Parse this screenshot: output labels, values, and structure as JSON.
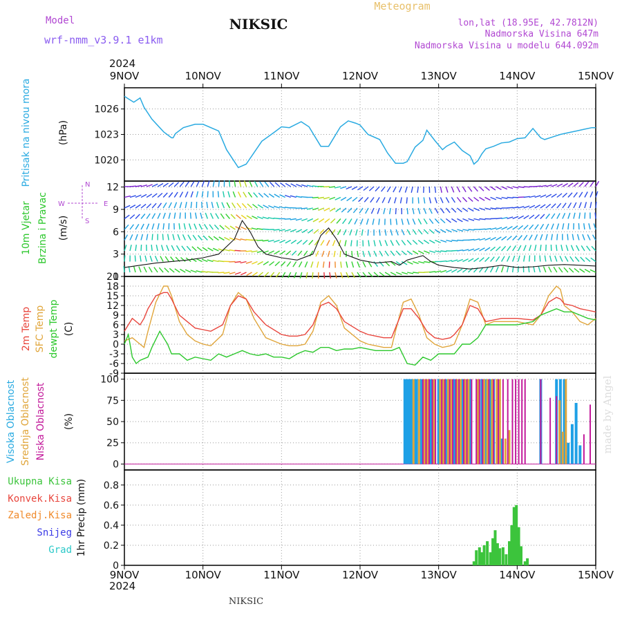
{
  "header": {
    "model_label": "Model",
    "model_name": "wrf-nmm_v3.9.1  e1km",
    "station": "NIKSIC",
    "product": "Meteogram",
    "coords": "lon,lat (18.95E, 42.7812N)",
    "elevation": "Nadmorska Visina 647m",
    "model_elevation": "Nadmorska Visina u modelu 644.092m",
    "footer_station": "NIKSIC",
    "credit": "made by Angel"
  },
  "x_axis": {
    "year_top": "2024",
    "year_bottom": "2024",
    "ticks": [
      "9NOV",
      "10NOV",
      "11NOV",
      "12NOV",
      "13NOV",
      "14NOV",
      "15NOV"
    ]
  },
  "colors": {
    "pressure": "#29aae1",
    "temp2m": "#e8453c",
    "sfc": "#e0a53a",
    "dewpt": "#2bc72b",
    "high_cloud": "#1ea0e6",
    "mid_cloud": "#e0a53a",
    "low_cloud": "#c2189a",
    "total_precip": "#3cc43c",
    "conv_precip": "#e8453c",
    "frozen_precip": "#f08a2a",
    "snow": "#3a3ae6",
    "hail": "#2ac8c8",
    "purple_text": "#b148d2",
    "model_text": "#8a5cf0"
  },
  "chart_data": [
    {
      "type": "line",
      "panel": "pressure",
      "ylabel_main": "Pritisak na nivou mora",
      "ylabel_unit": "(hPa)",
      "ylim": [
        1017.5,
        1028.5
      ],
      "yticks": [
        1020,
        1023,
        1026
      ],
      "series": [
        {
          "x": [
            0,
            0.05,
            0.12,
            0.2,
            0.25,
            0.35,
            0.5,
            0.6,
            0.62,
            0.65,
            0.75,
            0.9,
            1.0,
            1.2,
            1.3,
            1.45,
            1.55,
            1.75,
            1.9,
            2.0,
            2.1,
            2.25,
            2.35,
            2.5,
            2.6,
            2.75,
            2.85,
            2.95,
            3.0,
            3.1,
            3.25,
            3.35,
            3.45,
            3.55,
            3.6,
            3.7,
            3.8,
            3.85,
            3.95,
            4.05,
            4.1,
            4.2,
            4.3,
            4.4,
            4.45,
            4.5,
            4.55,
            4.6,
            4.7,
            4.8,
            4.9,
            5.0,
            5.1,
            5.2,
            5.3,
            5.35,
            5.45,
            5.55,
            5.65,
            5.75,
            5.85,
            5.95,
            6.0
          ],
          "y": [
            1027.5,
            1027.2,
            1026.8,
            1027.3,
            1026.2,
            1024.8,
            1023.3,
            1022.6,
            1022.6,
            1023.1,
            1023.8,
            1024.2,
            1024.2,
            1023.4,
            1021.2,
            1019.1,
            1019.5,
            1022.2,
            1023.2,
            1023.9,
            1023.8,
            1024.5,
            1023.9,
            1021.6,
            1021.6,
            1023.9,
            1024.6,
            1024.3,
            1024.1,
            1023.0,
            1022.4,
            1020.8,
            1019.6,
            1019.6,
            1019.8,
            1021.5,
            1022.3,
            1023.5,
            1022.3,
            1021.2,
            1021.6,
            1022.1,
            1021.1,
            1020.5,
            1019.5,
            1019.9,
            1020.7,
            1021.3,
            1021.6,
            1022.0,
            1022.1,
            1022.5,
            1022.6,
            1023.7,
            1022.6,
            1022.4,
            1022.7,
            1023.0,
            1023.2,
            1023.4,
            1023.6,
            1023.8,
            1023.8
          ]
        }
      ]
    },
    {
      "type": "line",
      "panel": "wind",
      "ylabel_main": "10m Vjetar",
      "ylabel_sub": "Brzina i Pravac",
      "ylabel_unit": "(m/s)",
      "legend_n": "N",
      "legend_s": "S",
      "legend_w": "W",
      "legend_e": "E",
      "ylim": [
        0,
        12.8
      ],
      "yticks": [
        0,
        3,
        6,
        9,
        12
      ],
      "series": [
        {
          "name": "speed",
          "x": [
            0,
            0.2,
            0.4,
            0.6,
            0.8,
            1.0,
            1.2,
            1.4,
            1.5,
            1.6,
            1.7,
            1.8,
            2.0,
            2.2,
            2.4,
            2.5,
            2.6,
            2.7,
            2.8,
            3.0,
            3.2,
            3.4,
            3.5,
            3.6,
            3.7,
            3.8,
            3.9,
            4.0,
            4.2,
            4.4,
            4.6,
            4.8,
            5.0,
            5.2,
            5.4,
            5.6,
            5.8,
            6.0
          ],
          "y": [
            1.2,
            1.5,
            1.8,
            2.0,
            2.2,
            2.5,
            3.0,
            5.0,
            7.5,
            6.0,
            4.0,
            3.0,
            2.5,
            2.2,
            3.0,
            5.5,
            6.5,
            5.0,
            3.0,
            2.2,
            1.8,
            2.0,
            1.5,
            2.2,
            2.5,
            2.8,
            2.0,
            1.5,
            1.2,
            1.0,
            1.2,
            1.5,
            1.2,
            1.3,
            1.5,
            1.6,
            1.5,
            1.4
          ]
        }
      ]
    },
    {
      "type": "line",
      "panel": "temperature",
      "ylabel_main": "2m Temp",
      "ylabel_sub": "SFC Temp",
      "ylabel_sub2": "dewpt Temp",
      "ylabel_unit": "(C)",
      "ylim": [
        -9,
        21
      ],
      "yticks": [
        -9,
        -6,
        -3,
        0,
        3,
        6,
        9,
        12,
        15,
        18,
        21
      ],
      "series": [
        {
          "name": "2m Temp",
          "x": [
            0,
            0.1,
            0.2,
            0.25,
            0.3,
            0.4,
            0.5,
            0.55,
            0.6,
            0.7,
            0.8,
            0.9,
            1.0,
            1.1,
            1.25,
            1.35,
            1.45,
            1.55,
            1.65,
            1.8,
            2.0,
            2.1,
            2.2,
            2.3,
            2.4,
            2.5,
            2.6,
            2.7,
            2.8,
            3.0,
            3.1,
            3.2,
            3.3,
            3.4,
            3.45,
            3.55,
            3.65,
            3.75,
            3.85,
            3.95,
            4.05,
            4.15,
            4.2,
            4.3,
            4.4,
            4.5,
            4.6,
            4.7,
            4.8,
            5.0,
            5.2,
            5.3,
            5.4,
            5.5,
            5.55,
            5.6,
            5.7,
            5.8,
            5.9,
            6.0
          ],
          "y": [
            4,
            8,
            6,
            8,
            11,
            15,
            16,
            16,
            14,
            9,
            7,
            5,
            4.5,
            4,
            6,
            12,
            15,
            14,
            10,
            6,
            3,
            2.5,
            2.5,
            3,
            6,
            12,
            13,
            11,
            7,
            4,
            3,
            2.5,
            2,
            2,
            5,
            11,
            11,
            8,
            4,
            2,
            1.5,
            2,
            3,
            6,
            12,
            11,
            7,
            7.5,
            8,
            8,
            7.5,
            9,
            13,
            14.5,
            14,
            12.5,
            12,
            11,
            10.5,
            10
          ]
        },
        {
          "name": "SFC Temp",
          "x": [
            0,
            0.1,
            0.2,
            0.25,
            0.3,
            0.4,
            0.5,
            0.55,
            0.6,
            0.7,
            0.8,
            0.9,
            1.0,
            1.1,
            1.25,
            1.35,
            1.45,
            1.55,
            1.65,
            1.8,
            2.0,
            2.1,
            2.2,
            2.3,
            2.4,
            2.5,
            2.6,
            2.7,
            2.8,
            3.0,
            3.1,
            3.2,
            3.3,
            3.4,
            3.45,
            3.55,
            3.65,
            3.75,
            3.85,
            3.95,
            4.05,
            4.15,
            4.2,
            4.3,
            4.4,
            4.5,
            4.6,
            4.7,
            4.8,
            5.0,
            5.2,
            5.3,
            5.4,
            5.5,
            5.55,
            5.6,
            5.7,
            5.8,
            5.9,
            6.0
          ],
          "y": [
            1,
            2,
            0,
            -1,
            4,
            13,
            18,
            18,
            15,
            7,
            3,
            1,
            0,
            -0.5,
            3,
            12,
            16,
            14,
            8,
            2,
            0,
            -0.5,
            -0.5,
            0,
            4,
            13,
            15,
            12,
            5,
            1,
            0,
            -0.5,
            -1,
            -1,
            4,
            13,
            14,
            9,
            2,
            0,
            -1,
            -0.5,
            0,
            6,
            14,
            13,
            6,
            7,
            7,
            7,
            6,
            9,
            15,
            18,
            17,
            12,
            10,
            7,
            6,
            8
          ]
        },
        {
          "name": "dewpt Temp",
          "x": [
            0,
            0.05,
            0.1,
            0.15,
            0.2,
            0.3,
            0.35,
            0.45,
            0.5,
            0.55,
            0.6,
            0.7,
            0.8,
            0.9,
            1.0,
            1.1,
            1.2,
            1.3,
            1.4,
            1.5,
            1.6,
            1.7,
            1.8,
            1.9,
            2.0,
            2.1,
            2.2,
            2.3,
            2.4,
            2.5,
            2.6,
            2.7,
            2.8,
            2.9,
            3.0,
            3.2,
            3.4,
            3.5,
            3.6,
            3.7,
            3.8,
            3.9,
            4.0,
            4.1,
            4.2,
            4.3,
            4.4,
            4.5,
            4.6,
            4.8,
            5.0,
            5.2,
            5.3,
            5.4,
            5.5,
            5.6,
            5.7,
            5.8,
            5.9,
            6.0
          ],
          "y": [
            0,
            3,
            -4,
            -6,
            -5,
            -4,
            -1,
            4,
            2,
            0,
            -3,
            -3,
            -5,
            -4,
            -4.5,
            -5,
            -3,
            -4,
            -3,
            -2,
            -3,
            -3.5,
            -3,
            -4,
            -4,
            -4.5,
            -3,
            -2,
            -2.5,
            -1,
            -1,
            -2,
            -1.5,
            -1.5,
            -1,
            -2,
            -2,
            -1,
            -6,
            -6.5,
            -4,
            -5,
            -3,
            -3,
            -3,
            0,
            0,
            2,
            6,
            6,
            6,
            7,
            9,
            10,
            11,
            10,
            10,
            9,
            8,
            7.5
          ]
        }
      ]
    },
    {
      "type": "bar",
      "panel": "clouds",
      "ylabel_main": "Visoka Oblacnost",
      "ylabel_sub": "Srednja Oblacnost",
      "ylabel_sub2": "Niska Oblacnost",
      "ylabel_unit": "(%)",
      "ylim": [
        -7,
        107
      ],
      "yticks": [
        0,
        25,
        50,
        75,
        100
      ],
      "series": [
        {
          "name": "Visoka Oblacnost",
          "x": [
            3.57,
            3.6,
            3.62,
            3.64,
            3.66,
            3.7,
            3.72,
            3.78,
            3.9,
            4.0,
            4.1,
            4.2,
            4.3,
            4.4,
            4.55,
            4.6,
            4.65,
            4.7,
            4.75,
            4.8,
            5.3,
            5.5,
            5.55,
            5.6,
            5.62,
            5.65,
            5.7,
            5.75,
            5.8
          ],
          "y": [
            100,
            100,
            100,
            100,
            100,
            100,
            100,
            100,
            100,
            100,
            100,
            100,
            100,
            100,
            100,
            100,
            100,
            100,
            100,
            30,
            100,
            100,
            100,
            100,
            10,
            25,
            47,
            72,
            22
          ]
        },
        {
          "name": "Srednja Oblacnost",
          "x": [
            3.68,
            3.75,
            3.82,
            3.86,
            3.94,
            4.02,
            4.06,
            4.12,
            4.16,
            4.24,
            4.28,
            4.34,
            4.38,
            4.5,
            4.58,
            4.62,
            4.68,
            4.74,
            4.78,
            4.85,
            4.9,
            5.54,
            5.58,
            5.62
          ],
          "y": [
            100,
            100,
            100,
            100,
            100,
            100,
            100,
            100,
            100,
            100,
            100,
            100,
            100,
            100,
            100,
            100,
            100,
            100,
            100,
            30,
            40,
            75,
            38,
            100
          ]
        },
        {
          "name": "Niska Oblacnost",
          "x": [
            3.8,
            3.84,
            3.88,
            3.92,
            3.96,
            4.04,
            4.08,
            4.14,
            4.18,
            4.22,
            4.26,
            4.32,
            4.36,
            4.42,
            4.48,
            4.52,
            4.56,
            4.64,
            4.7,
            4.76,
            4.82,
            4.88,
            4.94,
            4.98,
            5.02,
            5.06,
            5.1,
            5.3,
            5.42,
            5.5,
            5.85,
            5.93
          ],
          "y": [
            100,
            100,
            100,
            100,
            100,
            100,
            100,
            100,
            100,
            100,
            100,
            100,
            100,
            100,
            100,
            100,
            100,
            100,
            100,
            100,
            100,
            100,
            100,
            100,
            100,
            100,
            100,
            100,
            78,
            80,
            35,
            70
          ]
        }
      ]
    },
    {
      "type": "bar",
      "panel": "precip",
      "legend": [
        "Ukupna Kisa",
        "Konvek.Kisa",
        "Zaledj.Kisa",
        "Snijeg",
        "Grad"
      ],
      "ylabel_main": "1hr Precip",
      "ylabel_unit": "(mm)",
      "ylim": [
        0,
        0.95
      ],
      "yticks": [
        "0",
        "0.2",
        "0.4",
        "0.6",
        "0.8"
      ],
      "series": [
        {
          "name": "Ukupna Kisa",
          "x": [
            4.45,
            4.48,
            4.52,
            4.55,
            4.58,
            4.62,
            4.66,
            4.69,
            4.72,
            4.75,
            4.78,
            4.82,
            4.86,
            4.9,
            4.93,
            4.96,
            4.99,
            5.02,
            5.05,
            5.1,
            5.13
          ],
          "y": [
            0.04,
            0.15,
            0.18,
            0.13,
            0.2,
            0.24,
            0.13,
            0.27,
            0.35,
            0.22,
            0.17,
            0.18,
            0.11,
            0.24,
            0.4,
            0.58,
            0.6,
            0.38,
            0.19,
            0.04,
            0.07
          ]
        }
      ]
    }
  ]
}
